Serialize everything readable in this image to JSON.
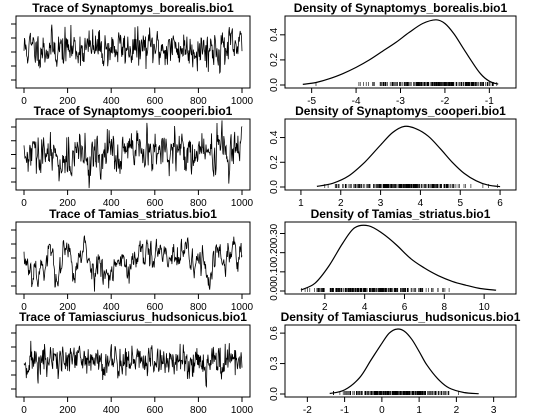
{
  "chart_data": [
    {
      "type": "line",
      "title": "Trace of Synaptomys_borealis.bio1",
      "xlabel": "",
      "ylabel": "",
      "xticks": [
        "0",
        "200",
        "400",
        "600",
        "800",
        "1000"
      ],
      "yticks": [],
      "xlim": [
        0,
        1000
      ],
      "seed": 11,
      "mean": 0.55,
      "sd": 0.13,
      "ar": 0.35,
      "drift": 0.0,
      "n": 480
    },
    {
      "type": "line",
      "title": "Density of Synaptomys_borealis.bio1",
      "xlabel": "",
      "ylabel": "",
      "xticks": [
        "-5",
        "-4",
        "-3",
        "-2",
        "-1"
      ],
      "yticks": [
        "0.0",
        "0.2",
        "0.4"
      ],
      "xlim": [
        -5.6,
        -0.4
      ],
      "ylim": [
        0,
        0.55
      ],
      "x": [
        -5.2,
        -4.9,
        -4.6,
        -4.3,
        -4.0,
        -3.7,
        -3.4,
        -3.1,
        -2.8,
        -2.5,
        -2.2,
        -2.0,
        -1.8,
        -1.6,
        -1.4,
        -1.2,
        -1.0,
        -0.8
      ],
      "y": [
        0.005,
        0.02,
        0.05,
        0.09,
        0.14,
        0.2,
        0.27,
        0.34,
        0.42,
        0.49,
        0.52,
        0.49,
        0.41,
        0.3,
        0.19,
        0.09,
        0.03,
        0.006
      ]
    },
    {
      "type": "line",
      "title": "Trace of Synaptomys_cooperi.bio1",
      "xlabel": "",
      "ylabel": "",
      "xticks": [
        "0",
        "200",
        "400",
        "600",
        "800",
        "1000"
      ],
      "yticks": [],
      "xlim": [
        0,
        1000
      ],
      "seed": 29,
      "mean": 0.5,
      "sd": 0.16,
      "ar": 0.55,
      "drift": 0.12,
      "n": 480
    },
    {
      "type": "line",
      "title": "Density of Synaptomys_cooperi.bio1",
      "xlabel": "",
      "ylabel": "",
      "xticks": [
        "1",
        "2",
        "3",
        "4",
        "5",
        "6"
      ],
      "yticks": [
        "0.0",
        "0.2",
        "0.4"
      ],
      "xlim": [
        0.6,
        6.4
      ],
      "ylim": [
        0,
        0.55
      ],
      "x": [
        1.4,
        1.8,
        2.2,
        2.6,
        3.0,
        3.3,
        3.6,
        3.9,
        4.2,
        4.5,
        4.8,
        5.1,
        5.4,
        5.7,
        6.0
      ],
      "y": [
        0.005,
        0.03,
        0.09,
        0.2,
        0.34,
        0.44,
        0.49,
        0.47,
        0.41,
        0.31,
        0.2,
        0.11,
        0.05,
        0.015,
        0.003
      ]
    },
    {
      "type": "line",
      "title": "Trace of Tamias_striatus.bio1",
      "xlabel": "",
      "ylabel": "",
      "xticks": [
        "0",
        "200",
        "400",
        "600",
        "800",
        "1000"
      ],
      "yticks": [],
      "xlim": [
        0,
        1000
      ],
      "seed": 53,
      "mean": 0.45,
      "sd": 0.17,
      "ar": 0.82,
      "drift": 0.0,
      "n": 480
    },
    {
      "type": "line",
      "title": "Density of Tamias_striatus.bio1",
      "xlabel": "",
      "ylabel": "",
      "xticks": [
        "2",
        "4",
        "6",
        "8",
        "10"
      ],
      "yticks": [
        "0.00",
        "0.10",
        "0.20",
        "0.30"
      ],
      "xlim": [
        0,
        11.6
      ],
      "ylim": [
        0,
        0.36
      ],
      "x": [
        0.8,
        1.5,
        2.2,
        2.9,
        3.5,
        4.2,
        4.9,
        5.6,
        6.3,
        7.0,
        7.7,
        8.4,
        9.1,
        9.8,
        10.6
      ],
      "y": [
        0.005,
        0.04,
        0.13,
        0.25,
        0.33,
        0.34,
        0.3,
        0.24,
        0.17,
        0.12,
        0.08,
        0.05,
        0.03,
        0.013,
        0.004
      ]
    },
    {
      "type": "line",
      "title": "Trace of Tamiasciurus_hudsonicus.bio1",
      "xlabel": "",
      "ylabel": "",
      "xticks": [
        "0",
        "200",
        "400",
        "600",
        "800",
        "1000"
      ],
      "yticks": [],
      "xlim": [
        0,
        1000
      ],
      "seed": 71,
      "mean": 0.5,
      "sd": 0.12,
      "ar": 0.3,
      "drift": 0.0,
      "n": 480
    },
    {
      "type": "line",
      "title": "Density of Tamiasciurus_hudsonicus.bio1",
      "xlabel": "",
      "ylabel": "",
      "xticks": [
        "-2",
        "-1",
        "0",
        "1",
        "2",
        "3"
      ],
      "yticks": [
        "0.0",
        "0.3",
        "0.6"
      ],
      "xlim": [
        -2.6,
        3.6
      ],
      "ylim": [
        0,
        0.68
      ],
      "x": [
        -1.4,
        -1.0,
        -0.6,
        -0.3,
        0.0,
        0.2,
        0.4,
        0.6,
        0.8,
        1.0,
        1.2,
        1.5,
        1.8,
        2.2,
        2.6
      ],
      "y": [
        0.005,
        0.04,
        0.16,
        0.33,
        0.5,
        0.6,
        0.64,
        0.62,
        0.54,
        0.42,
        0.29,
        0.15,
        0.06,
        0.015,
        0.003
      ]
    }
  ]
}
